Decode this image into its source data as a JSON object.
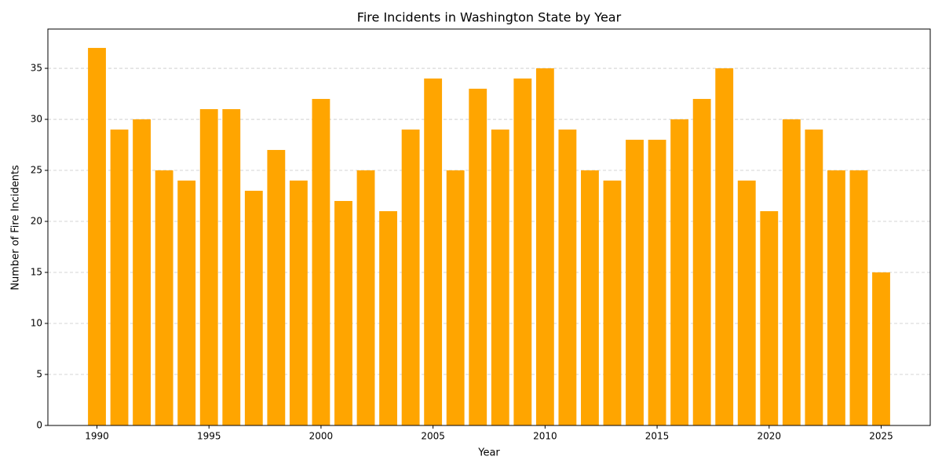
{
  "chart_data": {
    "type": "bar",
    "title": "Fire Incidents in Washington State by Year",
    "x_label": "Year",
    "y_label": "Number of Fire Incidents",
    "x": [
      1990,
      1991,
      1992,
      1993,
      1994,
      1995,
      1996,
      1997,
      1998,
      1999,
      2000,
      2001,
      2002,
      2003,
      2004,
      2005,
      2006,
      2007,
      2008,
      2009,
      2010,
      2011,
      2012,
      2013,
      2014,
      2015,
      2016,
      2017,
      2018,
      2019,
      2020,
      2021,
      2022,
      2023,
      2024,
      2025
    ],
    "values": [
      37,
      29,
      30,
      25,
      24,
      31,
      31,
      23,
      27,
      24,
      32,
      22,
      25,
      21,
      29,
      34,
      25,
      33,
      29,
      34,
      35,
      29,
      25,
      24,
      28,
      28,
      30,
      32,
      35,
      24,
      21,
      30,
      29,
      25,
      25,
      15
    ],
    "color": "#ffa500",
    "xlim": [
      1987.81,
      2027.19
    ],
    "xticks": [
      1990,
      1995,
      2000,
      2005,
      2010,
      2015,
      2020,
      2025
    ],
    "ylim": [
      0,
      38.85
    ],
    "yticks": [
      0,
      5,
      10,
      15,
      20,
      25,
      30,
      35
    ],
    "grid": true
  }
}
